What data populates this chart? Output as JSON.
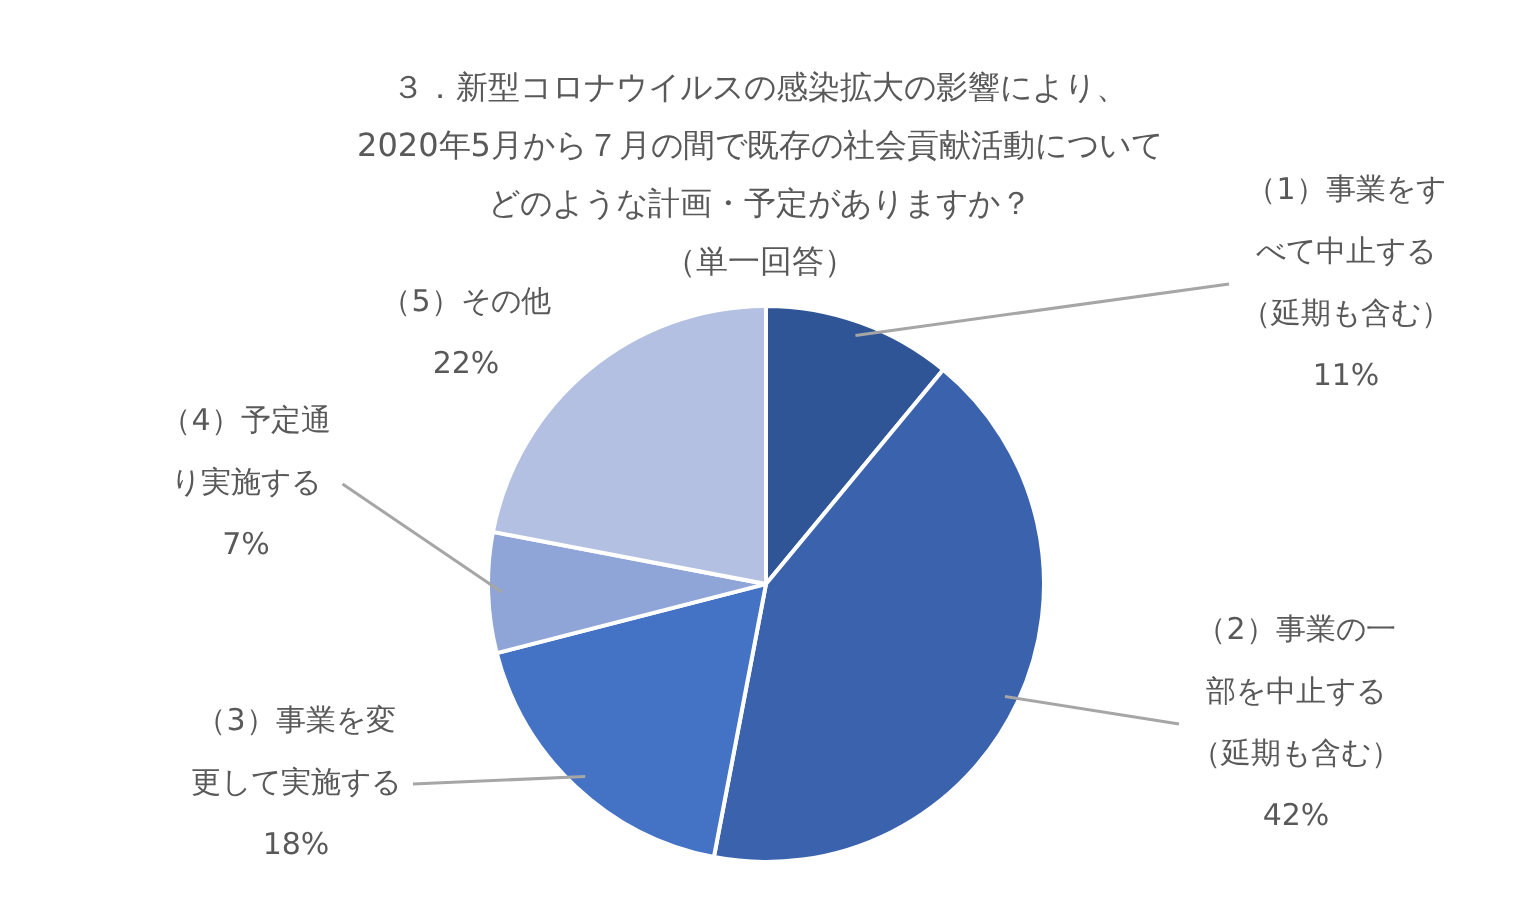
{
  "chart_data": {
    "type": "pie",
    "title": "３．新型コロナウイルスの感染拡大の影響により、2020年5月から７月の間で既存の社会貢献活動についてどのような計画・予定がありますか？（単一回答）",
    "categories": [
      "（1）事業をすべて中止する（延期も含む）",
      "（2）事業の一部を中止する（延期も含む）",
      "（3）事業を変更して実施する",
      "（4）予定通り実施する",
      "（5）その他"
    ],
    "values": [
      11,
      42,
      18,
      7,
      22
    ],
    "colors": [
      "#2f5597",
      "#3a62ad",
      "#4472c4",
      "#8fa5d8",
      "#b4c0e2"
    ],
    "value_labels": [
      "11%",
      "42%",
      "18%",
      "7%",
      "22%"
    ],
    "legend": false
  }
}
